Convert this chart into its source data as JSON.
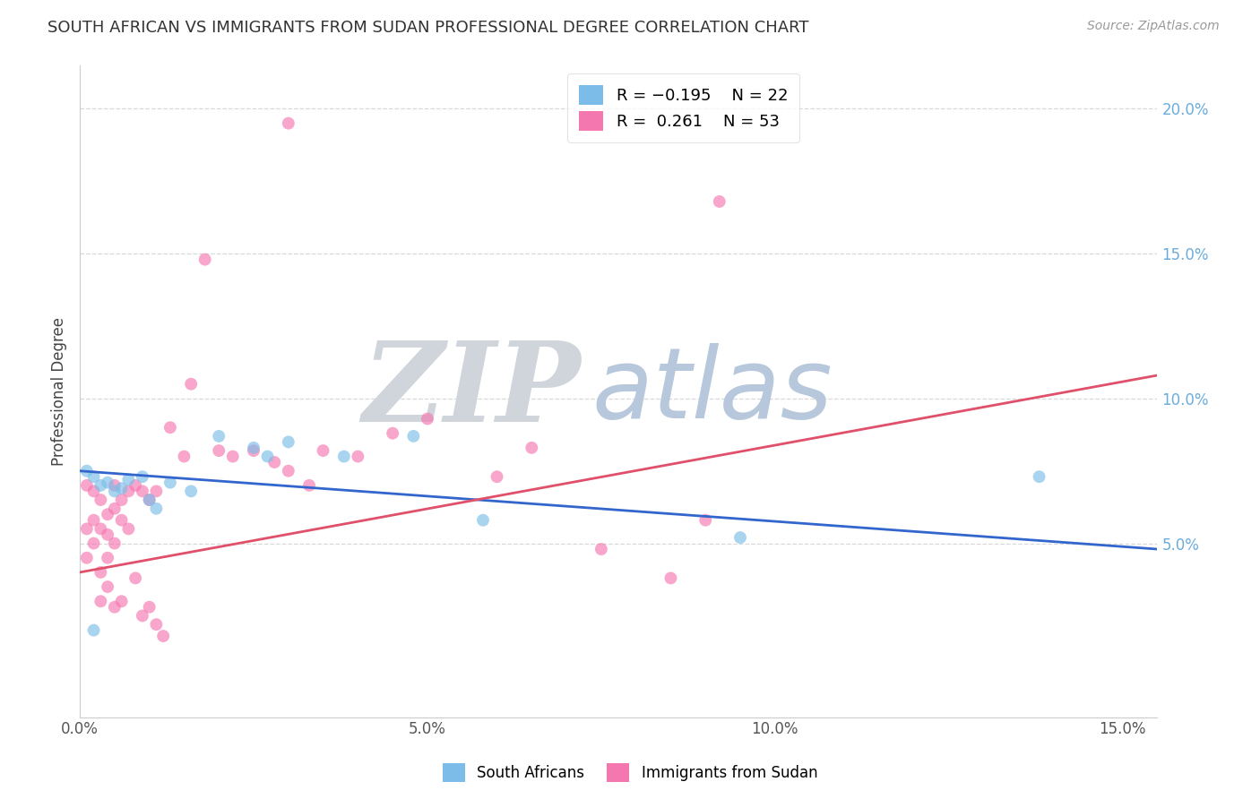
{
  "title": "SOUTH AFRICAN VS IMMIGRANTS FROM SUDAN PROFESSIONAL DEGREE CORRELATION CHART",
  "source": "Source: ZipAtlas.com",
  "ylabel": "Professional Degree",
  "xlim": [
    0.0,
    0.155
  ],
  "ylim": [
    -0.01,
    0.215
  ],
  "xticks": [
    0.0,
    0.05,
    0.1,
    0.15
  ],
  "xticklabels": [
    "0.0%",
    "5.0%",
    "10.0%",
    "15.0%"
  ],
  "yticks_right": [
    0.05,
    0.1,
    0.15,
    0.2
  ],
  "yticklabels_right": [
    "5.0%",
    "10.0%",
    "15.0%",
    "20.0%"
  ],
  "color_sa": "#7bbde8",
  "color_sudan": "#f577b0",
  "line_sa": "#3366cc",
  "line_sudan": "#e0506a",
  "sa_x": [
    0.001,
    0.002,
    0.003,
    0.004,
    0.005,
    0.006,
    0.007,
    0.009,
    0.01,
    0.011,
    0.013,
    0.016,
    0.02,
    0.025,
    0.027,
    0.03,
    0.038,
    0.048,
    0.058,
    0.095,
    0.138,
    0.002
  ],
  "sa_y": [
    0.075,
    0.073,
    0.07,
    0.071,
    0.068,
    0.069,
    0.072,
    0.073,
    0.065,
    0.062,
    0.071,
    0.068,
    0.087,
    0.083,
    0.08,
    0.085,
    0.08,
    0.087,
    0.058,
    0.052,
    0.073,
    0.02
  ],
  "sudan_x": [
    0.001,
    0.001,
    0.001,
    0.002,
    0.002,
    0.002,
    0.003,
    0.003,
    0.004,
    0.004,
    0.004,
    0.005,
    0.005,
    0.005,
    0.006,
    0.006,
    0.007,
    0.007,
    0.008,
    0.009,
    0.01,
    0.011,
    0.013,
    0.015,
    0.016,
    0.018,
    0.02,
    0.022,
    0.025,
    0.028,
    0.03,
    0.033,
    0.035,
    0.04,
    0.045,
    0.05,
    0.06,
    0.065,
    0.075,
    0.085,
    0.09,
    0.092,
    0.003,
    0.003,
    0.004,
    0.005,
    0.006,
    0.008,
    0.009,
    0.01,
    0.011,
    0.012,
    0.03
  ],
  "sudan_y": [
    0.07,
    0.055,
    0.045,
    0.068,
    0.058,
    0.05,
    0.065,
    0.055,
    0.06,
    0.053,
    0.045,
    0.07,
    0.062,
    0.05,
    0.065,
    0.058,
    0.068,
    0.055,
    0.07,
    0.068,
    0.065,
    0.068,
    0.09,
    0.08,
    0.105,
    0.148,
    0.082,
    0.08,
    0.082,
    0.078,
    0.075,
    0.07,
    0.082,
    0.08,
    0.088,
    0.093,
    0.073,
    0.083,
    0.048,
    0.038,
    0.058,
    0.168,
    0.04,
    0.03,
    0.035,
    0.028,
    0.03,
    0.038,
    0.025,
    0.028,
    0.022,
    0.018,
    0.195
  ],
  "background_color": "#ffffff",
  "grid_color": "#d8d8d8",
  "watermark_zip_color": "#d0d5dc",
  "watermark_atlas_color": "#b8c8dc"
}
